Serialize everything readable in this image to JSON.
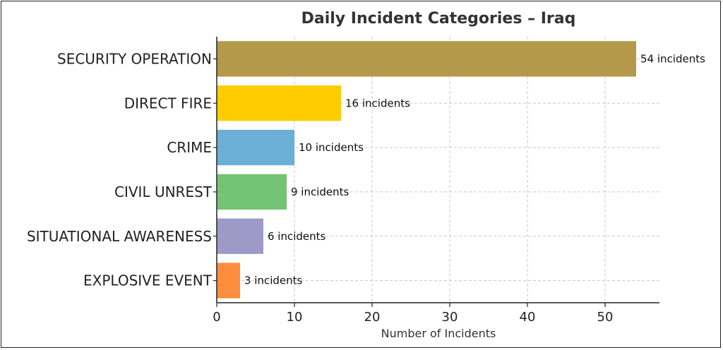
{
  "chart_data": {
    "type": "bar",
    "orientation": "horizontal",
    "title": "Daily Incident Categories – Iraq",
    "xlabel": "Number of Incidents",
    "ylabel": "",
    "categories": [
      "SECURITY OPERATION",
      "DIRECT FIRE",
      "CRIME",
      "CIVIL UNREST",
      "SITUATIONAL AWARENESS",
      "EXPLOSIVE EVENT"
    ],
    "values": [
      54,
      16,
      10,
      9,
      6,
      3
    ],
    "data_labels": [
      "54 incidents",
      "16 incidents",
      "10 incidents",
      "9 incidents",
      "6 incidents",
      "3 incidents"
    ],
    "colors": [
      "#b5994a",
      "#ffcc00",
      "#6baed6",
      "#74c476",
      "#9e9ac8",
      "#fd8d3c"
    ],
    "xlim": [
      0,
      57
    ],
    "xticks": [
      0,
      10,
      20,
      30,
      40,
      50
    ],
    "grid": true,
    "legend": "none"
  }
}
